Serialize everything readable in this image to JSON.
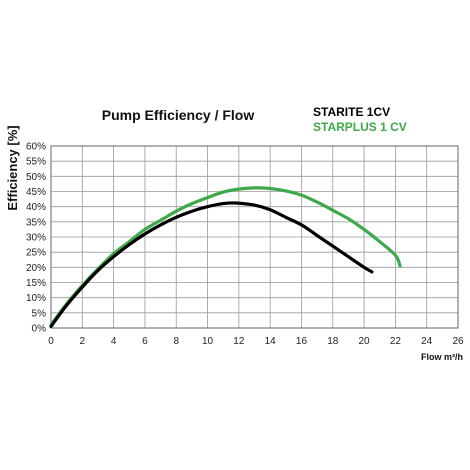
{
  "chart_data": {
    "type": "line",
    "title": "Pump  Efficiency /  Flow",
    "ylabel": "Efficiency [%]",
    "xlabel": "Flow m³/h",
    "xlim": [
      0,
      26
    ],
    "ylim": [
      0,
      60
    ],
    "xticks": [
      0,
      2,
      4,
      6,
      8,
      10,
      12,
      14,
      16,
      18,
      20,
      22,
      24,
      26
    ],
    "yticks": [
      0,
      5,
      10,
      15,
      20,
      25,
      30,
      35,
      40,
      45,
      50,
      55,
      60
    ],
    "ytick_labels": [
      "0%",
      "5%",
      "10%",
      "15%",
      "20%",
      "25%",
      "30%",
      "35%",
      "40%",
      "45%",
      "50%",
      "55%",
      "60%"
    ],
    "grid": true,
    "legend_position": "top-right",
    "series": [
      {
        "name": "STARITE 1CV",
        "color": "#000000",
        "x": [
          0,
          1,
          2,
          3,
          4,
          5,
          6,
          7,
          8,
          9,
          10,
          11,
          11.8,
          13,
          14,
          15,
          16,
          17,
          18,
          19,
          20,
          20.5
        ],
        "y": [
          0.5,
          7.5,
          13.5,
          19,
          23.5,
          27.5,
          31,
          34,
          36.5,
          38.5,
          40,
          41,
          41.2,
          40.5,
          39,
          36.5,
          34,
          30.5,
          27,
          23.5,
          20,
          18.5
        ]
      },
      {
        "name": "STARPLUS 1 CV",
        "color": "#3ea94a",
        "x": [
          0,
          1,
          2,
          3,
          4,
          5,
          6,
          7,
          8,
          9,
          10,
          11,
          12,
          13,
          14,
          15,
          16,
          17,
          18,
          19,
          20,
          21,
          22,
          22.3
        ],
        "y": [
          1,
          8,
          14,
          19.5,
          24.5,
          28.5,
          32.5,
          35.5,
          38.5,
          41,
          43,
          44.8,
          45.8,
          46.2,
          46,
          45.2,
          43.8,
          41.5,
          38.8,
          36,
          32.5,
          28.5,
          24,
          20.5
        ]
      }
    ]
  }
}
